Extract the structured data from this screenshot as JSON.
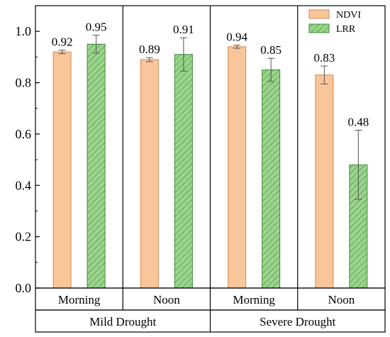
{
  "chart_data": {
    "type": "bar",
    "y_range": [
      0,
      1.1
    ],
    "y_ticks": [
      "0.0",
      "0.2",
      "0.4",
      "0.6",
      "0.8",
      "1.0"
    ],
    "y_tick_values": [
      0,
      0.2,
      0.4,
      0.6,
      0.8,
      1.0
    ],
    "grid": false,
    "legend_position": "top-right",
    "categories": [
      {
        "condition": "Mild Drought",
        "time": "Morning"
      },
      {
        "condition": "Mild Drought",
        "time": "Noon"
      },
      {
        "condition": "Severe Drought",
        "time": "Morning"
      },
      {
        "condition": "Severe Drought",
        "time": "Noon"
      }
    ],
    "sub_labels": [
      "Morning",
      "Noon",
      "Morning",
      "Noon"
    ],
    "group_labels": [
      "Mild Drought",
      "Severe Drought"
    ],
    "series": [
      {
        "name": "NDVI",
        "color": "#f9c59a",
        "pattern": "solid",
        "values": [
          0.92,
          0.89,
          0.94,
          0.83
        ],
        "labels": [
          "0.92",
          "0.89",
          "0.94",
          "0.83"
        ],
        "errors": [
          0.007,
          0.008,
          0.006,
          0.035
        ]
      },
      {
        "name": "LRR",
        "color": "#9bd48c",
        "pattern": "hatched",
        "values": [
          0.95,
          0.91,
          0.85,
          0.48
        ],
        "labels": [
          "0.95",
          "0.91",
          "0.85",
          "0.48"
        ],
        "errors": [
          0.035,
          0.065,
          0.045,
          0.135
        ]
      }
    ]
  }
}
